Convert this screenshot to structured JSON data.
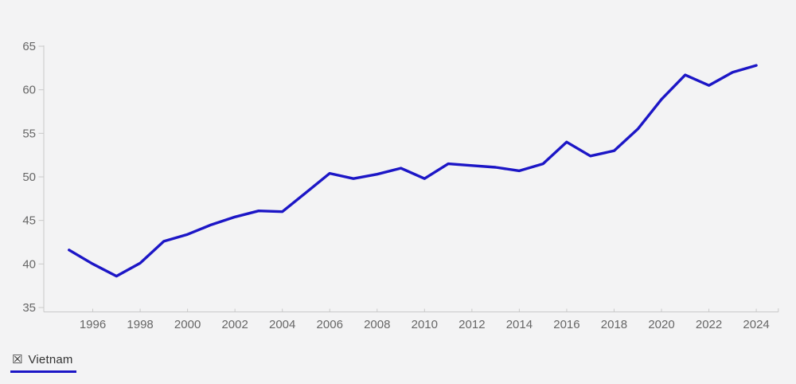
{
  "colors": {
    "background": "#f3f3f4",
    "axis": "#c9c9c9",
    "tick_label": "#666666",
    "series": "#1c16c6",
    "legend_text": "#333333"
  },
  "legend": {
    "items": [
      {
        "label": "Vietnam",
        "icon": "checkbox-x-icon",
        "icon_glyph": "☒",
        "underline_color": "#1c16c6"
      }
    ]
  },
  "chart_data": {
    "type": "line",
    "title": "",
    "xlabel": "",
    "ylabel": "",
    "grid": false,
    "legend_position": "bottom-left",
    "xlim": [
      1994,
      2025
    ],
    "ylim": [
      35,
      65
    ],
    "y_ticks": [
      35,
      40,
      45,
      50,
      55,
      60,
      65
    ],
    "x_ticks": [
      1996,
      1998,
      2000,
      2002,
      2004,
      2006,
      2008,
      2010,
      2012,
      2014,
      2016,
      2018,
      2020,
      2022,
      2024
    ],
    "series": [
      {
        "name": "Vietnam",
        "color": "#1c16c6",
        "x": [
          1995,
          1996,
          1997,
          1998,
          1999,
          2000,
          2001,
          2002,
          2003,
          2004,
          2005,
          2006,
          2007,
          2008,
          2009,
          2010,
          2011,
          2012,
          2013,
          2014,
          2015,
          2016,
          2017,
          2018,
          2019,
          2020,
          2021,
          2022,
          2023,
          2024
        ],
        "values": [
          41.6,
          40.0,
          38.6,
          40.1,
          42.6,
          43.4,
          44.5,
          45.4,
          46.1,
          46.0,
          48.2,
          50.4,
          49.8,
          50.3,
          51.0,
          49.8,
          51.5,
          51.3,
          51.1,
          50.7,
          51.5,
          54.0,
          52.4,
          53.0,
          55.5,
          58.9,
          61.7,
          60.5,
          62.0,
          62.8
        ]
      }
    ]
  }
}
